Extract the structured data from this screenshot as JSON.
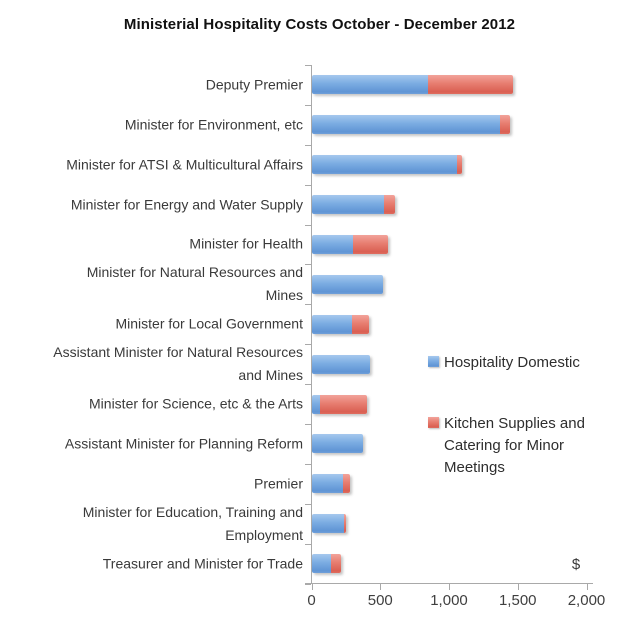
{
  "title": "Ministerial Hospitality Costs October - December 2012",
  "axis": {
    "unit_label": "$",
    "x_ticks": [
      "0",
      "500",
      "1,000",
      "1,500",
      "2,000"
    ]
  },
  "legend": {
    "items": [
      {
        "label": "Hospitality Domestic",
        "display": "Hospitality Domestic",
        "color": "#7BACE2",
        "swatch": "blue"
      },
      {
        "label": "Kitchen Supplies and Catering for Minor Meetings",
        "display": "Kitchen Supplies and\nCatering for Minor\nMeetings",
        "color": "#E77D70",
        "swatch": "red"
      }
    ]
  },
  "chart_data": {
    "type": "bar",
    "orientation": "horizontal",
    "stacked": true,
    "title": "Ministerial Hospitality Costs October - December 2012",
    "xlabel": "$",
    "xlim": [
      0,
      2000
    ],
    "x_tick_values": [
      0,
      500,
      1000,
      1500,
      2000
    ],
    "grid": false,
    "legend_position": "right",
    "categories": [
      "Deputy Premier",
      "Minister for Environment, etc",
      "Minister for ATSI & Multicultural Affairs",
      "Minister for Energy and Water Supply",
      "Minister for Health",
      "Minister for Natural Resources and Mines",
      "Minister for Local Government",
      "Assistant Minister for Natural Resources and Mines",
      "Minister for Science, etc & the Arts",
      "Assistant Minister for Planning Reform",
      "Premier",
      "Minister for Education, Training and Employment",
      "Treasurer and Minister for Trade"
    ],
    "category_display": [
      "Deputy Premier",
      "Minister for Environment, etc",
      "Minister for ATSI & Multicultural Affairs",
      "Minister for Energy and Water Supply",
      "Minister for Health",
      "Minister for Natural Resources and\nMines",
      "Minister for Local Government",
      "Assistant Minister for Natural Resources\nand Mines",
      "Minister for Science, etc & the Arts",
      "Assistant Minister for Planning Reform",
      "Premier",
      "Minister for Education, Training and\nEmployment",
      "Treasurer and Minister for Trade"
    ],
    "series": [
      {
        "name": "Hospitality Domestic",
        "color": "#7BACE2",
        "values": [
          840,
          1365,
          1055,
          525,
          300,
          515,
          290,
          425,
          60,
          370,
          225,
          230,
          140
        ]
      },
      {
        "name": "Kitchen Supplies and Catering for Minor Meetings",
        "color": "#E77D70",
        "values": [
          620,
          75,
          35,
          75,
          255,
          0,
          125,
          0,
          340,
          0,
          50,
          20,
          70
        ]
      }
    ]
  }
}
